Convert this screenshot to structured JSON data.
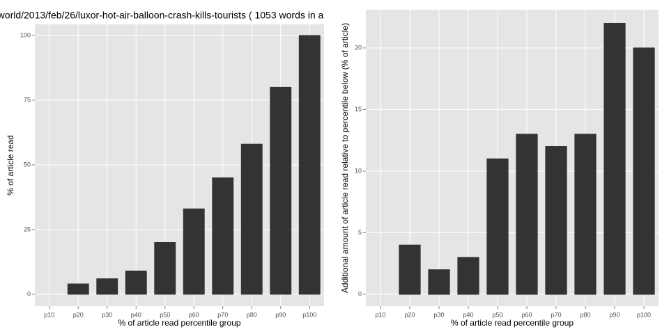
{
  "chart_data": [
    {
      "type": "bar",
      "title": "world/2013/feb/26/luxor-hot-air-balloon-crash-kills-tourists ( 1053 words in a",
      "x_label": "% of article read percentile group",
      "y_label": "% of article read",
      "categories": [
        "p10",
        "p20",
        "p30",
        "p40",
        "p50",
        "p60",
        "p70",
        "p80",
        "p90",
        "p100"
      ],
      "values": [
        0,
        4,
        6,
        9,
        20,
        33,
        45,
        58,
        80,
        100
      ],
      "color": "#333333",
      "ylim": [
        -4.6,
        104.3
      ],
      "yticks": [
        0,
        25,
        50,
        75,
        100
      ],
      "grid": true
    },
    {
      "type": "bar",
      "x_label": "% of article read percentile group",
      "y_label": "Additional amount of article read relative to percentile below (% of article)",
      "categories": [
        "p10",
        "p20",
        "p30",
        "p40",
        "p50",
        "p60",
        "p70",
        "p80",
        "p90",
        "p100"
      ],
      "values": [
        0,
        4,
        2,
        3,
        11,
        13,
        12,
        13,
        22,
        20
      ],
      "color": "#333333",
      "ylim": [
        -0.96,
        23.1
      ],
      "yticks": [
        0,
        5,
        10,
        15,
        20
      ],
      "grid": true
    }
  ]
}
